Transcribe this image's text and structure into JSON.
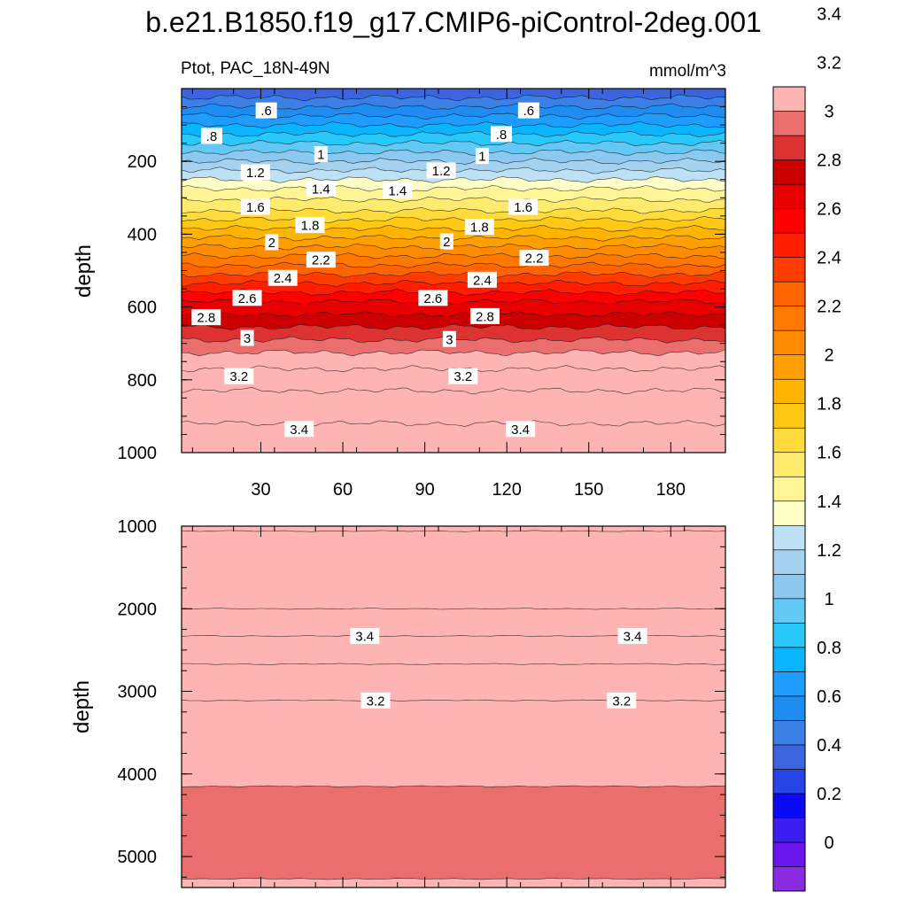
{
  "title": "b.e21.B1850.f19_g17.CMIP6-piControl-2deg.001",
  "chart_data": [
    {
      "type": "heatmap",
      "name": "upper",
      "left_label": "Ptot, PAC_18N-49N",
      "right_label": "mmol/m^3",
      "ylabel": "depth",
      "xlabel": "",
      "xlim": [
        1,
        200
      ],
      "ylim": [
        0,
        1000
      ],
      "y_reversed": true,
      "xticks": [
        30,
        60,
        90,
        120,
        150,
        180
      ],
      "yticks": [
        200,
        400,
        600,
        800,
        1000
      ],
      "bands": [
        {
          "top": 0,
          "value": 0.4
        },
        {
          "top": 25,
          "value": 0.55
        },
        {
          "top": 50,
          "value": 0.65
        },
        {
          "top": 75,
          "value": 0.75
        },
        {
          "top": 100,
          "value": 0.85
        },
        {
          "top": 125,
          "value": 0.95
        },
        {
          "top": 150,
          "value": 1.05
        },
        {
          "top": 175,
          "value": 1.15
        },
        {
          "top": 200,
          "value": 1.25
        },
        {
          "top": 225,
          "value": 1.35
        },
        {
          "top": 250,
          "value": 1.45
        },
        {
          "top": 275,
          "value": 1.55
        },
        {
          "top": 305,
          "value": 1.65
        },
        {
          "top": 335,
          "value": 1.75
        },
        {
          "top": 360,
          "value": 1.85
        },
        {
          "top": 385,
          "value": 1.95
        },
        {
          "top": 410,
          "value": 2.05
        },
        {
          "top": 435,
          "value": 2.15
        },
        {
          "top": 460,
          "value": 2.25
        },
        {
          "top": 485,
          "value": 2.35
        },
        {
          "top": 510,
          "value": 2.45
        },
        {
          "top": 535,
          "value": 2.55
        },
        {
          "top": 560,
          "value": 2.65
        },
        {
          "top": 585,
          "value": 2.75
        },
        {
          "top": 620,
          "value": 2.85
        },
        {
          "top": 655,
          "value": 2.95
        },
        {
          "top": 690,
          "value": 3.05
        },
        {
          "top": 725,
          "value": 3.15
        },
        {
          "top": 770,
          "value": 3.25
        },
        {
          "top": 830,
          "value": 3.35
        },
        {
          "top": 920,
          "value": 3.45
        }
      ],
      "contour_labels": [
        {
          "text": ".6",
          "x": 32,
          "y": 60
        },
        {
          "text": ".6",
          "x": 128,
          "y": 60
        },
        {
          "text": ".8",
          "x": 12,
          "y": 130
        },
        {
          "text": ".8",
          "x": 118,
          "y": 125
        },
        {
          "text": "1",
          "x": 52,
          "y": 180
        },
        {
          "text": "1",
          "x": 111,
          "y": 185
        },
        {
          "text": "1.2",
          "x": 28,
          "y": 230
        },
        {
          "text": "1.2",
          "x": 96,
          "y": 225
        },
        {
          "text": "1.4",
          "x": 52,
          "y": 275
        },
        {
          "text": "1.4",
          "x": 80,
          "y": 280
        },
        {
          "text": "1.6",
          "x": 28,
          "y": 325
        },
        {
          "text": "1.6",
          "x": 126,
          "y": 325
        },
        {
          "text": "1.8",
          "x": 48,
          "y": 375
        },
        {
          "text": "1.8",
          "x": 110,
          "y": 380
        },
        {
          "text": "2",
          "x": 34,
          "y": 422
        },
        {
          "text": "2",
          "x": 98,
          "y": 420
        },
        {
          "text": "2.2",
          "x": 52,
          "y": 470
        },
        {
          "text": "2.2",
          "x": 130,
          "y": 465
        },
        {
          "text": "2.4",
          "x": 38,
          "y": 520
        },
        {
          "text": "2.4",
          "x": 111,
          "y": 525
        },
        {
          "text": "2.6",
          "x": 25,
          "y": 575
        },
        {
          "text": "2.6",
          "x": 93,
          "y": 575
        },
        {
          "text": "2.8",
          "x": 10,
          "y": 628
        },
        {
          "text": "2.8",
          "x": 112,
          "y": 625
        },
        {
          "text": "3",
          "x": 25,
          "y": 685
        },
        {
          "text": "3",
          "x": 99,
          "y": 688
        },
        {
          "text": "3.2",
          "x": 22,
          "y": 790
        },
        {
          "text": "3.2",
          "x": 104,
          "y": 790
        },
        {
          "text": "3.4",
          "x": 44,
          "y": 935
        },
        {
          "text": "3.4",
          "x": 125,
          "y": 935
        }
      ]
    },
    {
      "type": "heatmap",
      "name": "lower",
      "ylabel": "depth",
      "xlabel": "",
      "xlim": [
        1,
        200
      ],
      "ylim": [
        1000,
        5375
      ],
      "y_reversed": true,
      "xticks": [
        30,
        60,
        90,
        120,
        150,
        180
      ],
      "yticks": [
        1000,
        2000,
        3000,
        4000,
        5000
      ],
      "bands": [
        {
          "top": 1000,
          "value": 3.45
        },
        {
          "top": 1060,
          "value": 3.55
        },
        {
          "top": 2000,
          "value": 3.45
        },
        {
          "top": 2330,
          "value": 3.35
        },
        {
          "top": 2670,
          "value": 3.25
        },
        {
          "top": 3110,
          "value": 3.15
        },
        {
          "top": 4150,
          "value": 3.05
        },
        {
          "top": 5270,
          "value": 3.15
        }
      ],
      "contour_labels": [
        {
          "text": "3.4",
          "x": 68,
          "y": 2330
        },
        {
          "text": "3.4",
          "x": 166,
          "y": 2330
        },
        {
          "text": "3.2",
          "x": 72,
          "y": 3110
        },
        {
          "text": "3.2",
          "x": 162,
          "y": 3110
        }
      ]
    }
  ],
  "colorbar": {
    "labels": [
      "0",
      "0.2",
      "0.4",
      "0.6",
      "0.8",
      "1",
      "1.2",
      "1.4",
      "1.6",
      "1.8",
      "2",
      "2.2",
      "2.4",
      "2.6",
      "2.8",
      "3",
      "3.2",
      "3.4"
    ],
    "step": 0.1,
    "colors": [
      "#8a2be2",
      "#6a14ee",
      "#3c1cf0",
      "#0a0af5",
      "#2844e6",
      "#3c64de",
      "#3c80e6",
      "#1e8cf0",
      "#1e9cff",
      "#0ab4ff",
      "#28c8fa",
      "#64c8f5",
      "#8cc8f0",
      "#a5d2f0",
      "#bee1f5",
      "#ffffc8",
      "#fff596",
      "#ffeb6e",
      "#ffdc3c",
      "#ffc814",
      "#ffb400",
      "#ffa000",
      "#ff8c00",
      "#ff7800",
      "#ff6400",
      "#ff3c00",
      "#ff1e00",
      "#ff0000",
      "#e60000",
      "#cc0000",
      "#dc3232",
      "#eb6e6e",
      "#ffb4b4"
    ]
  }
}
